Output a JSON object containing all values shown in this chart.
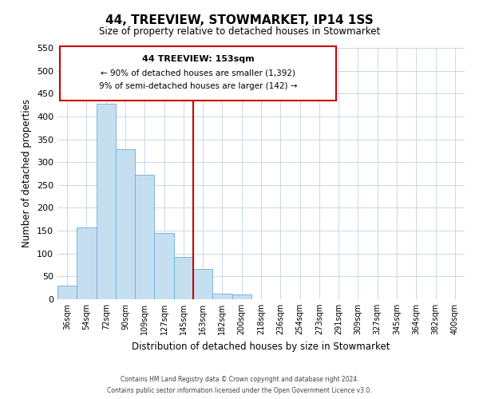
{
  "title": "44, TREEVIEW, STOWMARKET, IP14 1SS",
  "subtitle": "Size of property relative to detached houses in Stowmarket",
  "xlabel": "Distribution of detached houses by size in Stowmarket",
  "ylabel": "Number of detached properties",
  "bar_labels": [
    "36sqm",
    "54sqm",
    "72sqm",
    "90sqm",
    "109sqm",
    "127sqm",
    "145sqm",
    "163sqm",
    "182sqm",
    "200sqm",
    "218sqm",
    "236sqm",
    "254sqm",
    "273sqm",
    "291sqm",
    "309sqm",
    "327sqm",
    "345sqm",
    "364sqm",
    "382sqm",
    "400sqm"
  ],
  "bar_values": [
    30,
    157,
    428,
    328,
    273,
    145,
    92,
    67,
    13,
    10,
    0,
    0,
    0,
    0,
    0,
    0,
    0,
    0,
    0,
    0,
    0
  ],
  "bar_color": "#c5dff0",
  "bar_edge_color": "#6aaed6",
  "vline_color": "#cc0000",
  "vline_index": 7,
  "ylim": [
    0,
    550
  ],
  "yticks": [
    0,
    50,
    100,
    150,
    200,
    250,
    300,
    350,
    400,
    450,
    500,
    550
  ],
  "annotation_box_title": "44 TREEVIEW: 153sqm",
  "annotation_line1": "← 90% of detached houses are smaller (1,392)",
  "annotation_line2": "9% of semi-detached houses are larger (142) →",
  "annotation_box_color": "#ffffff",
  "annotation_box_edge": "#cc0000",
  "footer_line1": "Contains HM Land Registry data © Crown copyright and database right 2024.",
  "footer_line2": "Contains public sector information licensed under the Open Government Licence v3.0.",
  "background_color": "#ffffff",
  "grid_color": "#c8d8ea"
}
